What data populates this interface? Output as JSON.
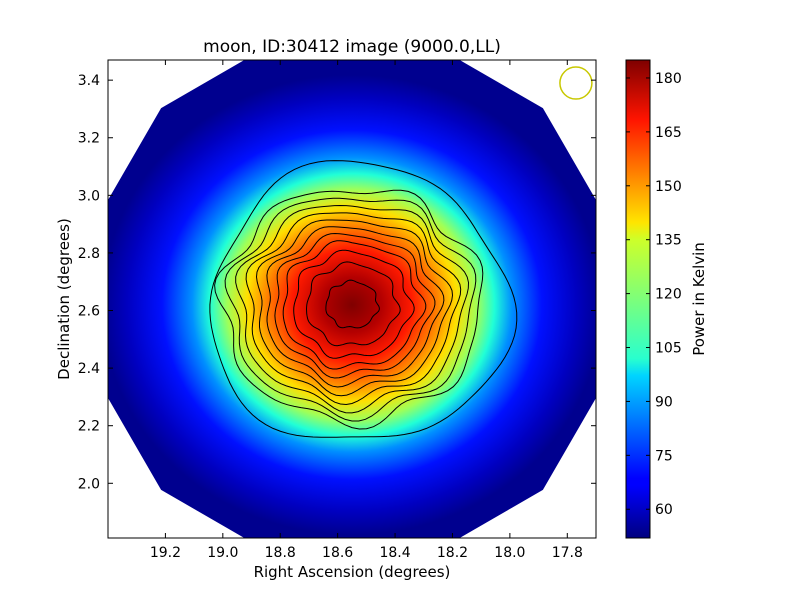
{
  "chart_data": {
    "type": "heatmap",
    "title": "moon, ID:30412 image (9000.0,LL)",
    "xlabel": "Right Ascension (degrees)",
    "ylabel": "Declination (degrees)",
    "xlim": [
      19.4,
      17.7
    ],
    "ylim": [
      1.81,
      3.47
    ],
    "x_inverted": true,
    "x_ticks": [
      19.2,
      19.0,
      18.8,
      18.6,
      18.4,
      18.2,
      18.0,
      17.8
    ],
    "x_tick_labels": [
      "19.2",
      "19.0",
      "18.8",
      "18.6",
      "18.4",
      "18.2",
      "18.0",
      "17.8"
    ],
    "y_ticks": [
      2.0,
      2.2,
      2.4,
      2.6,
      2.8,
      3.0,
      3.2,
      3.4
    ],
    "y_tick_labels": [
      "2.0",
      "2.2",
      "2.4",
      "2.6",
      "2.8",
      "3.0",
      "3.2",
      "3.4"
    ],
    "colorbar": {
      "label": "Power in Kelvin",
      "range": [
        52,
        185
      ],
      "ticks": [
        60,
        75,
        90,
        105,
        120,
        135,
        150,
        165,
        180
      ],
      "tick_labels": [
        "60",
        "75",
        "90",
        "105",
        "120",
        "135",
        "150",
        "165",
        "180"
      ],
      "colormap": "jet"
    },
    "map": {
      "background_value": 52,
      "peak_value": 185,
      "peak_center": [
        18.55,
        2.62
      ],
      "footprint_shape": "dodecagon",
      "footprint_center": [
        18.55,
        2.64
      ]
    },
    "beam_marker": {
      "center": [
        17.77,
        3.39
      ],
      "color": "#c8c800"
    },
    "contour_color": "#000000"
  }
}
